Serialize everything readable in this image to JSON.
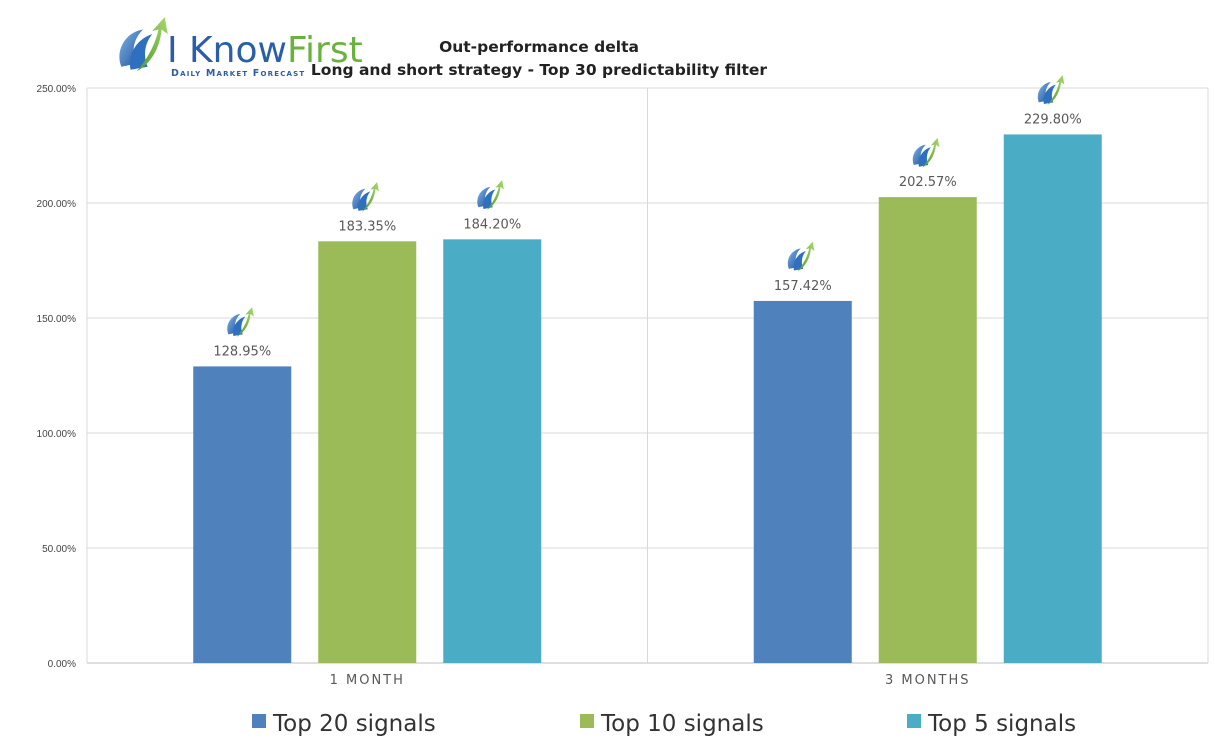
{
  "logo": {
    "brand": "I KnowFirst",
    "brand_part1": "I Know",
    "brand_part2": "First",
    "tagline": "Daily Market Forecast"
  },
  "colors": {
    "top20": "#4F81BD",
    "top10": "#9BBB59",
    "top5": "#4BACC6",
    "logo_blue": "#2a5ea8",
    "logo_green": "#6ab23e"
  },
  "chart_data": {
    "type": "bar",
    "title": "Out-performance delta",
    "subtitle": "Long and short strategy - Top 30 predictability filter",
    "categories": [
      "1 MONTH",
      "3 MONTHS"
    ],
    "series": [
      {
        "name": "Top 20 signals",
        "values": [
          128.95,
          157.42
        ],
        "labels": [
          "128.95%",
          "157.42%"
        ],
        "color": "#4F81BD"
      },
      {
        "name": "Top 10 signals",
        "values": [
          183.35,
          202.57
        ],
        "labels": [
          "183.35%",
          "202.57%"
        ],
        "color": "#9BBB59"
      },
      {
        "name": "Top 5 signals",
        "values": [
          184.2,
          229.8
        ],
        "labels": [
          "184.20%",
          "229.80%"
        ],
        "color": "#4BACC6"
      }
    ],
    "ylim": [
      0,
      250
    ],
    "yticks": [
      "0.00%",
      "50.00%",
      "100.00%",
      "150.00%",
      "200.00%",
      "250.00%"
    ],
    "grid": true,
    "legend_position": "bottom",
    "xlabel": "",
    "ylabel": ""
  }
}
